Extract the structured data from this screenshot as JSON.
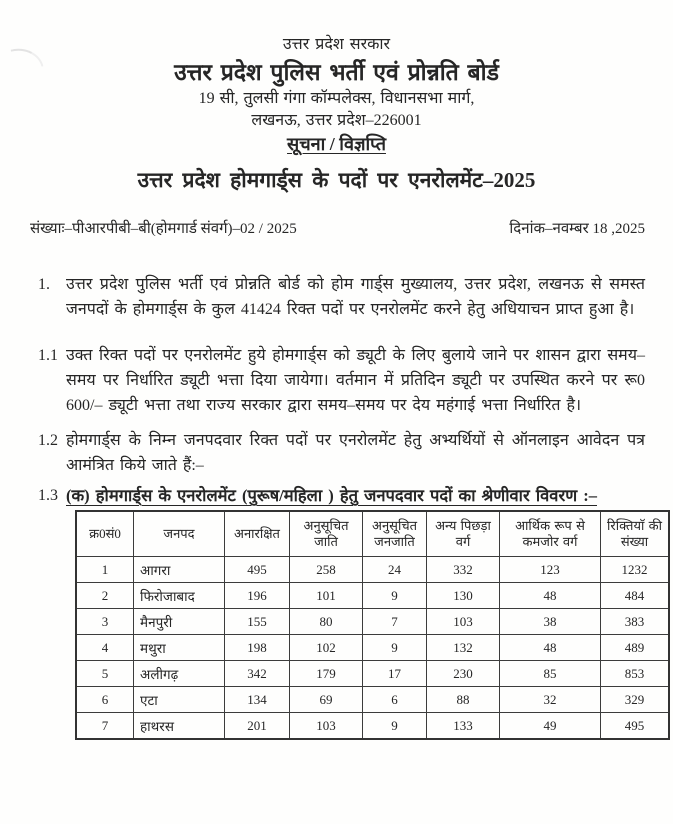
{
  "page": {
    "header": {
      "gov_line": "उत्तर प्रदेश सरकार",
      "board_name": "उत्तर प्रदेश पुलिस भर्ती एवं प्रोन्नति बोर्ड",
      "address_line1": "19 सी, तुलसी गंगा कॉम्पलेक्स, विधानसभा मार्ग,",
      "address_line2": "लखनऊ, उत्तर प्रदेश–226001"
    },
    "notice_label": "सूचना / विज्ञप्ति",
    "main_title": "उत्तर प्रदेश होमगार्ड्स के पदों पर एनरोलमेंट–2025",
    "ref_number": "संख्याः–पीआरपीबी–बी(होमगार्ड संवर्ग)–02 / 2025",
    "date": "दिनांक–नवम्बर 18 ,2025",
    "paragraphs": [
      {
        "number": "1.",
        "text": "उत्तर प्रदेश पुलिस भर्ती एवं प्रोन्नति बोर्ड को होम गार्ड्स मुख्यालय, उत्तर प्रदेश, लखनऊ से समस्त जनपदों के होमगार्ड्स के कुल 41424 रिक्त पदों पर एनरोलमेंट करने हेतु अधियाचन प्राप्त हुआ है।"
      },
      {
        "number": "1.1",
        "text": "उक्त रिक्त पदों पर एनरोलमेंट हुये होमगार्ड्स को ड्यूटी के लिए बुलाये जाने पर शासन द्वारा समय–समय पर निर्धारित ड्यूटी भत्ता दिया जायेगा। वर्तमान में प्रतिदिन ड्यूटी पर उपस्थित करने पर रू0 600/– ड्यूटी भत्ता तथा राज्य सरकार द्वारा समय–समय पर देय महंगाई भत्ता निर्धारित है।"
      },
      {
        "number": "1.2",
        "text": "होमगार्ड्स के निम्न जनपदवार रिक्त पदों पर एनरोलमेंट हेतु अभ्यर्थियों से ऑनलाइन आवेदन पत्र आमंत्रित किये जाते हैं:–"
      },
      {
        "number": "1.3",
        "text": "(क) होमगार्ड्स के एनरोलमेंट (पुरूष/महिला ) हेतु जनपदवार पदों का श्रेणीवार विवरण :–"
      }
    ],
    "table": {
      "headers": [
        "क्र0सं0",
        "जनपद",
        "अनारक्षित",
        "अनुसूचित जाति",
        "अनुसूचित जनजाति",
        "अन्य पिछड़ा वर्ग",
        "आर्थिक रूप से कमजोर वर्ग",
        "रिक्तियाॅ की संख्या"
      ],
      "rows": [
        [
          "1",
          "आगरा",
          "495",
          "258",
          "24",
          "332",
          "123",
          "1232"
        ],
        [
          "2",
          "फिरोजाबाद",
          "196",
          "101",
          "9",
          "130",
          "48",
          "484"
        ],
        [
          "3",
          "मैनपुरी",
          "155",
          "80",
          "7",
          "103",
          "38",
          "383"
        ],
        [
          "4",
          "मथुरा",
          "198",
          "102",
          "9",
          "132",
          "48",
          "489"
        ],
        [
          "5",
          "अलीगढ़",
          "342",
          "179",
          "17",
          "230",
          "85",
          "853"
        ],
        [
          "6",
          "एटा",
          "134",
          "69",
          "6",
          "88",
          "32",
          "329"
        ],
        [
          "7",
          "हाथरस",
          "201",
          "103",
          "9",
          "133",
          "49",
          "495"
        ]
      ]
    }
  }
}
